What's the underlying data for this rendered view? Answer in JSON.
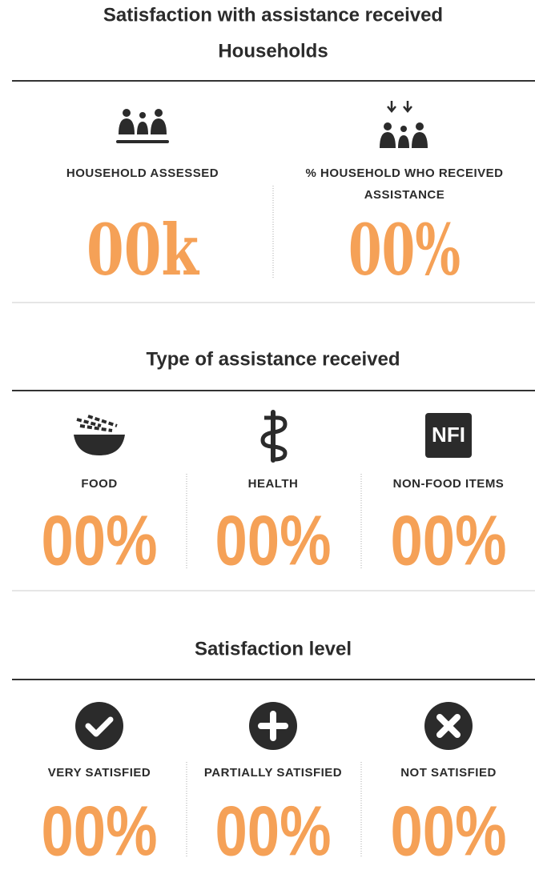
{
  "title": "Satisfaction with assistance received",
  "subtitle": "Households",
  "sections": [
    {
      "items": [
        {
          "label": [
            "HOUSEHOLD ASSESSED"
          ],
          "value": "00k"
        },
        {
          "label": [
            "% HOUSEHOLD WHO RECEIVED",
            "ASSISTANCE"
          ],
          "value": "00%"
        }
      ]
    },
    {
      "heading": "Type of assistance received",
      "items": [
        {
          "label": [
            "FOOD"
          ],
          "value": "00%"
        },
        {
          "label": [
            "HEALTH"
          ],
          "value": "00%"
        },
        {
          "label": [
            "NON-FOOD ITEMS"
          ],
          "icon_text": "NFI",
          "value": "00%"
        }
      ]
    },
    {
      "heading": "Satisfaction level",
      "items": [
        {
          "label": [
            "VERY SATISFIED"
          ],
          "value": "00%"
        },
        {
          "label": [
            "PARTIALLY SATISFIED"
          ],
          "value": "00%"
        },
        {
          "label": [
            "NOT SATISFIED"
          ],
          "value": "00%"
        }
      ]
    }
  ]
}
